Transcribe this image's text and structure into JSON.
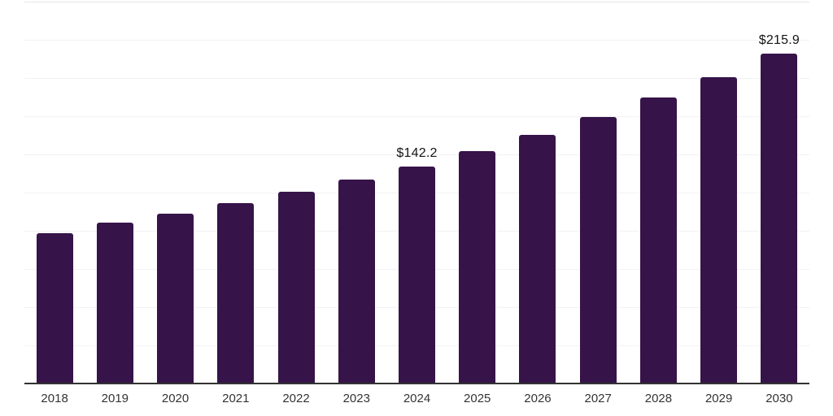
{
  "chart": {
    "bar_color": "#361349",
    "gridline_color": "#f2f2f4",
    "top_border_color": "#e4e4e6",
    "axis_color": "#333333",
    "tick_label_color": "#333333",
    "data_label_color": "#141414"
  },
  "chart_data": {
    "type": "bar",
    "title": "",
    "xlabel": "",
    "ylabel": "",
    "categories": [
      "2018",
      "2019",
      "2020",
      "2021",
      "2022",
      "2023",
      "2024",
      "2025",
      "2026",
      "2027",
      "2028",
      "2029",
      "2030"
    ],
    "values": [
      98.6,
      105.4,
      111.1,
      118.0,
      125.5,
      133.4,
      142.2,
      152.4,
      162.8,
      174.5,
      187.0,
      200.8,
      215.9
    ],
    "data_labels": [
      "",
      "",
      "",
      "",
      "",
      "",
      "$142.2",
      "",
      "",
      "",
      "",
      "",
      "$215.9"
    ],
    "ylim": [
      0,
      250
    ],
    "grid": "horizontal",
    "gridline_interval": 25,
    "legend": "none",
    "y_axis_labels_visible": false
  }
}
